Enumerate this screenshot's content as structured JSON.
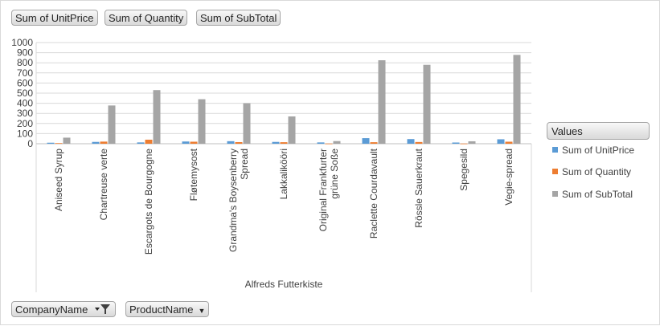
{
  "top_fields": [
    {
      "label": "Sum of UnitPrice"
    },
    {
      "label": "Sum of Quantity"
    },
    {
      "label": "Sum of SubTotal"
    }
  ],
  "bottom_fields": [
    {
      "label": "CompanyName",
      "icon": "filter-dropdown-icon"
    },
    {
      "label": "ProductName",
      "icon": "chevron-down-icon"
    }
  ],
  "legend": {
    "title": "Values",
    "items": [
      {
        "name": "Sum of UnitPrice",
        "color": "#5b9bd5"
      },
      {
        "name": "Sum of Quantity",
        "color": "#ed7d31"
      },
      {
        "name": "Sum of SubTotal",
        "color": "#a5a5a5"
      }
    ]
  },
  "chart_data": {
    "type": "bar",
    "title": "",
    "xlabel": "Alfreds Futterkiste",
    "ylabel": "",
    "ylim": [
      0,
      1000
    ],
    "yticks": [
      0,
      100,
      200,
      300,
      400,
      500,
      600,
      700,
      800,
      900,
      1000
    ],
    "grid": true,
    "legend_position": "right",
    "categories": [
      [
        "Aniseed Syrup"
      ],
      [
        "Chartreuse verte"
      ],
      [
        "Escargots de Bourgogne"
      ],
      [
        "Fløtemysost"
      ],
      [
        "Grandma's Boysenberry",
        "Spread"
      ],
      [
        "Lakkalikööri"
      ],
      [
        "Original Frankfurter",
        "grüne Soße"
      ],
      [
        "Raclette Courdavault"
      ],
      [
        "Rössle Sauerkraut"
      ],
      [
        "Spegesild"
      ],
      [
        "Vegie-spread"
      ]
    ],
    "series": [
      {
        "name": "Sum of UnitPrice",
        "color": "#5b9bd5",
        "values": [
          10,
          18,
          13,
          22,
          25,
          18,
          13,
          55,
          46,
          12,
          44
        ]
      },
      {
        "name": "Sum of Quantity",
        "color": "#ed7d31",
        "values": [
          6,
          21,
          40,
          20,
          16,
          15,
          2,
          15,
          17,
          2,
          20
        ]
      },
      {
        "name": "Sum of SubTotal",
        "color": "#a5a5a5",
        "values": [
          60,
          378,
          530,
          440,
          400,
          270,
          26,
          825,
          780,
          24,
          878
        ]
      }
    ]
  }
}
